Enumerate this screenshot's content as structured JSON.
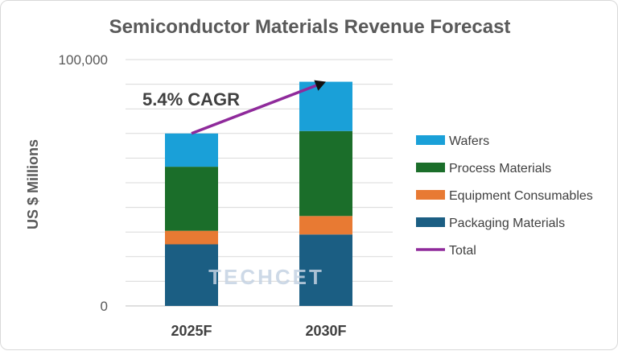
{
  "chart_data": {
    "type": "bar",
    "stacked": true,
    "title": "Semiconductor Materials Revenue Forecast",
    "ylabel": "US $ Millions",
    "xlabel": "",
    "categories": [
      "2025F",
      "2030F"
    ],
    "ylim": [
      0,
      100000
    ],
    "yticks": [
      {
        "value": 0,
        "label": "0"
      },
      {
        "value": 100000,
        "label": "100,000"
      }
    ],
    "gridline_step": 10000,
    "series": [
      {
        "name": "Packaging Materials",
        "color": "#1b5e83",
        "values": [
          25000,
          29000
        ]
      },
      {
        "name": "Equipment Consumables",
        "color": "#e87a33",
        "values": [
          5500,
          7500
        ]
      },
      {
        "name": "Process Materials",
        "color": "#1b6e2a",
        "values": [
          26000,
          34500
        ]
      },
      {
        "name": "Wafers",
        "color": "#1aa0d8",
        "values": [
          13500,
          20000
        ]
      }
    ],
    "total_line": {
      "name": "Total",
      "color": "#8f2a9b",
      "values": [
        70000,
        91000
      ]
    },
    "legend_order": [
      "Wafers",
      "Process Materials",
      "Equipment Consumables",
      "Packaging Materials",
      "Total"
    ],
    "legend_position": "right",
    "annotation": "5.4% CAGR"
  },
  "watermark": "TECHCET"
}
